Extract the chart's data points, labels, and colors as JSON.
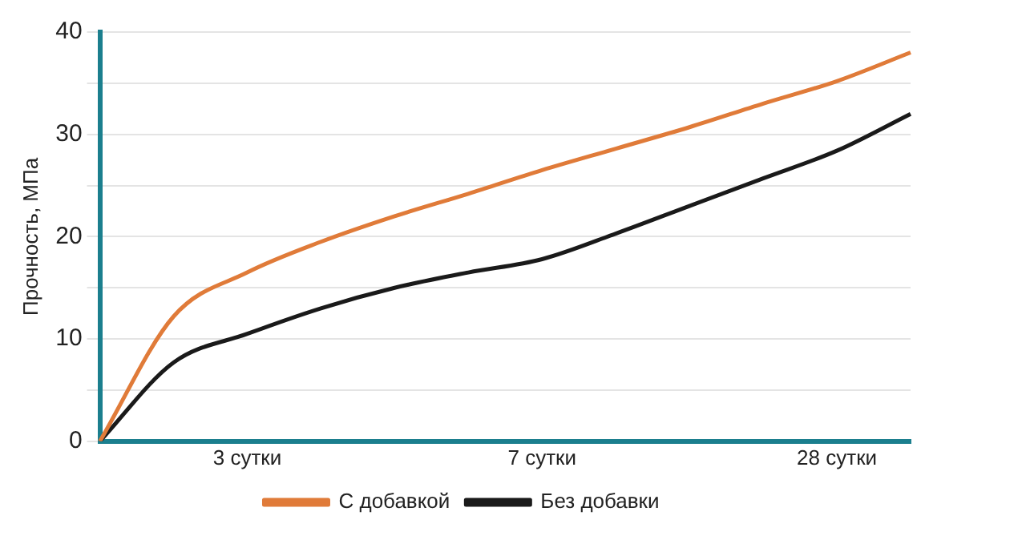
{
  "chart_data": {
    "type": "line",
    "ylabel": "Прочность, МПа",
    "ylim": [
      0,
      40
    ],
    "categories": [
      null,
      null,
      "3 сутки",
      null,
      null,
      null,
      "7 сутки",
      null,
      null,
      null,
      "28 сутки",
      null
    ],
    "yticks": [
      0,
      {
        "value": 5,
        "label": null
      },
      10,
      {
        "value": 15,
        "label": null
      },
      20,
      {
        "value": 25,
        "label": null
      },
      30,
      {
        "value": 35,
        "label": null
      },
      40
    ],
    "grid": "y",
    "legend": "bottom",
    "marker": "none",
    "line_style": "solid",
    "series": [
      {
        "name": "С добавкой",
        "color": "#e07b39",
        "values": [
          0,
          12.2,
          16.5,
          19.5,
          22,
          24.2,
          26.5,
          28.6,
          30.7,
          33,
          35.2,
          38
        ]
      },
      {
        "name": "Без добавки",
        "color": "#1a1a1a",
        "values": [
          0,
          7.7,
          10.5,
          13,
          15,
          16.5,
          17.8,
          20.3,
          23,
          25.7,
          28.4,
          32
        ]
      }
    ]
  }
}
